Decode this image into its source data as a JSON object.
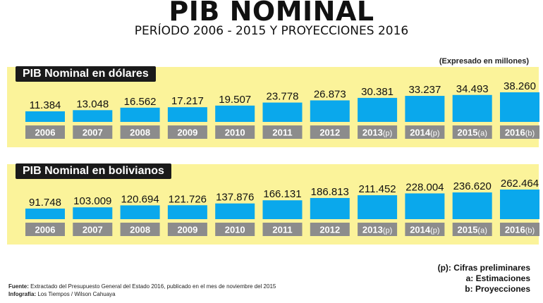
{
  "header": {
    "title": "PIB NOMINAL",
    "subtitle": "PERÍODO 2006 - 2015 Y PROYECCIONES 2016",
    "units": "(Expresado en millones)"
  },
  "colors": {
    "band": "#fbf39a",
    "bar": "#0aa8ec",
    "year_box": "#8c8c8c",
    "label_bg": "#1a1a1a"
  },
  "chart_data": [
    {
      "type": "bar",
      "title": "PIB Nominal en dólares",
      "categories": [
        "2006",
        "2007",
        "2008",
        "2009",
        "2010",
        "2011",
        "2012",
        "2013",
        "2014",
        "2015",
        "2016"
      ],
      "category_suffixes": [
        "",
        "",
        "",
        "",
        "",
        "",
        "",
        "(p)",
        "(p)",
        "(a)",
        "(b)"
      ],
      "values": [
        11384,
        13048,
        16562,
        17217,
        19507,
        23778,
        26873,
        30381,
        33237,
        34493,
        38260
      ],
      "value_labels": [
        "11.384",
        "13.048",
        "16.562",
        "17.217",
        "19.507",
        "23.778",
        "26.873",
        "30.381",
        "33.237",
        "34.493",
        "38.260"
      ],
      "grid": false
    },
    {
      "type": "bar",
      "title": "PIB Nominal en bolivianos",
      "categories": [
        "2006",
        "2007",
        "2008",
        "2009",
        "2010",
        "2011",
        "2012",
        "2013",
        "2014",
        "2015",
        "2016"
      ],
      "category_suffixes": [
        "",
        "",
        "",
        "",
        "",
        "",
        "",
        "(p)",
        "(p)",
        "(a)",
        "(b)"
      ],
      "values": [
        91748,
        103009,
        120694,
        121726,
        137876,
        166131,
        186813,
        211452,
        228004,
        236620,
        262464
      ],
      "value_labels": [
        "91.748",
        "103.009",
        "120.694",
        "121.726",
        "137.876",
        "166.131",
        "186.813",
        "211.452",
        "228.004",
        "236.620",
        "262.464"
      ],
      "grid": false
    }
  ],
  "notes": [
    {
      "key": "(p):",
      "text": "Cifras preliminares"
    },
    {
      "key": "a:",
      "text": "Estimaciones"
    },
    {
      "key": "b:",
      "text": "Proyecciones"
    }
  ],
  "footer": {
    "source_label": "Fuente:",
    "source_text": "Extractado del Presupuesto General del Estado 2016, publicado en el mes de noviembre del 2015",
    "credit_label": "Infografía:",
    "credit_text": "Los Tiempos / Wilson Cahuaya"
  }
}
